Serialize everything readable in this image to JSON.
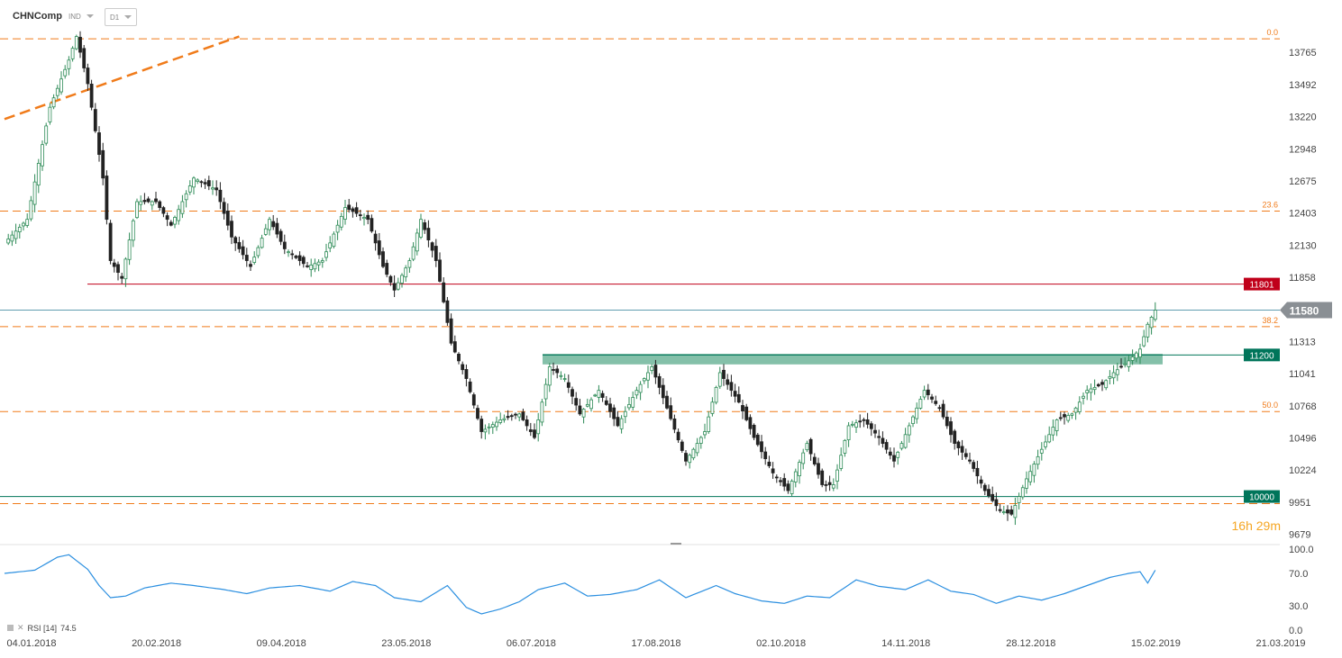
{
  "toolbar": {
    "symbol": "CHNComp",
    "instrument_type": "IND",
    "timeframe": "D1"
  },
  "timer": {
    "hours": "16",
    "h_unit": "h",
    "minutes": "29",
    "m_unit": "m"
  },
  "rsi": {
    "label": "RSI [14]",
    "value": "74.5"
  },
  "colors": {
    "bull": "#2e8b57",
    "bear": "#222222",
    "fib": "#f07b1a",
    "resistance_red": "#c0001a",
    "support_teal": "#00755a",
    "zone": "#6fb59a",
    "rsi_line": "#2b8fe0",
    "price_badge": "#8a8f94"
  },
  "chart_data": {
    "type": "candlestick",
    "ylim": [
      9600,
      13950
    ],
    "price_ticks": [
      "13765",
      "13492",
      "13220",
      "12948",
      "12675",
      "12403",
      "12130",
      "11858",
      "11313",
      "11041",
      "10768",
      "10496",
      "10224",
      "9951",
      "9679"
    ],
    "date_ticks": [
      "04.01.2018",
      "20.02.2018",
      "09.04.2018",
      "23.05.2018",
      "06.07.2018",
      "17.08.2018",
      "02.10.2018",
      "14.11.2018",
      "28.12.2018",
      "15.02.2019",
      "21.03.2019"
    ],
    "fib_levels": [
      {
        "label": "0.0",
        "value": 13880
      },
      {
        "label": "23.6",
        "value": 12420
      },
      {
        "label": "38.2",
        "value": 11440
      },
      {
        "label": "50.0",
        "value": 10720
      },
      {
        "label": "",
        "value": 9940
      }
    ],
    "horizontal_levels": [
      {
        "label": "11801",
        "value": 11801,
        "kind": "resistance"
      },
      {
        "label": "11200",
        "value": 11200,
        "kind": "support"
      },
      {
        "label": "10000",
        "value": 10000,
        "kind": "support"
      }
    ],
    "current_price": {
      "label": "11580",
      "value": 11580
    },
    "zone": {
      "from": 11120,
      "to": 11210
    },
    "trendline": {
      "from": [
        0,
        13200
      ],
      "to": [
        62,
        13900
      ]
    },
    "anchors": [
      [
        0,
        12150
      ],
      [
        6,
        12350
      ],
      [
        12,
        13300
      ],
      [
        17,
        13700
      ],
      [
        19,
        13900
      ],
      [
        22,
        13500
      ],
      [
        26,
        12700
      ],
      [
        28,
        12000
      ],
      [
        31,
        11850
      ],
      [
        35,
        12500
      ],
      [
        40,
        12500
      ],
      [
        44,
        12300
      ],
      [
        50,
        12700
      ],
      [
        56,
        12600
      ],
      [
        60,
        12200
      ],
      [
        65,
        11950
      ],
      [
        70,
        12350
      ],
      [
        74,
        12100
      ],
      [
        80,
        11950
      ],
      [
        84,
        12000
      ],
      [
        90,
        12450
      ],
      [
        96,
        12350
      ],
      [
        100,
        11950
      ],
      [
        103,
        11750
      ],
      [
        107,
        12000
      ],
      [
        110,
        12350
      ],
      [
        114,
        12000
      ],
      [
        118,
        11300
      ],
      [
        122,
        11000
      ],
      [
        126,
        10550
      ],
      [
        131,
        10650
      ],
      [
        136,
        10700
      ],
      [
        140,
        10500
      ],
      [
        144,
        11100
      ],
      [
        148,
        11000
      ],
      [
        152,
        10700
      ],
      [
        157,
        10900
      ],
      [
        162,
        10600
      ],
      [
        167,
        10900
      ],
      [
        171,
        11100
      ],
      [
        175,
        10750
      ],
      [
        180,
        10300
      ],
      [
        185,
        10550
      ],
      [
        189,
        11050
      ],
      [
        194,
        10800
      ],
      [
        198,
        10500
      ],
      [
        203,
        10200
      ],
      [
        207,
        10050
      ],
      [
        212,
        10450
      ],
      [
        216,
        10100
      ],
      [
        219,
        10100
      ],
      [
        223,
        10600
      ],
      [
        227,
        10650
      ],
      [
        231,
        10500
      ],
      [
        235,
        10300
      ],
      [
        239,
        10600
      ],
      [
        243,
        10900
      ],
      [
        247,
        10750
      ],
      [
        251,
        10450
      ],
      [
        255,
        10300
      ],
      [
        259,
        10050
      ],
      [
        263,
        9880
      ],
      [
        266,
        9850
      ],
      [
        270,
        10150
      ],
      [
        274,
        10400
      ],
      [
        278,
        10650
      ],
      [
        282,
        10700
      ],
      [
        286,
        10900
      ],
      [
        290,
        10950
      ],
      [
        293,
        11050
      ],
      [
        297,
        11150
      ],
      [
        300,
        11250
      ],
      [
        302,
        11460
      ],
      [
        304,
        11580
      ]
    ],
    "rsi_ylim": [
      0,
      100
    ],
    "rsi_ticks": [
      "100.0",
      "70.0",
      "30.0",
      "0.0"
    ],
    "rsi_anchors": [
      [
        0,
        70
      ],
      [
        8,
        74
      ],
      [
        14,
        90
      ],
      [
        17,
        93
      ],
      [
        22,
        75
      ],
      [
        25,
        55
      ],
      [
        28,
        40
      ],
      [
        32,
        42
      ],
      [
        37,
        52
      ],
      [
        44,
        58
      ],
      [
        50,
        55
      ],
      [
        58,
        50
      ],
      [
        64,
        45
      ],
      [
        70,
        52
      ],
      [
        78,
        55
      ],
      [
        86,
        48
      ],
      [
        92,
        60
      ],
      [
        98,
        55
      ],
      [
        103,
        40
      ],
      [
        110,
        35
      ],
      [
        117,
        55
      ],
      [
        122,
        28
      ],
      [
        126,
        20
      ],
      [
        131,
        26
      ],
      [
        136,
        35
      ],
      [
        141,
        50
      ],
      [
        148,
        58
      ],
      [
        154,
        42
      ],
      [
        160,
        44
      ],
      [
        167,
        50
      ],
      [
        173,
        62
      ],
      [
        180,
        40
      ],
      [
        188,
        55
      ],
      [
        193,
        45
      ],
      [
        200,
        36
      ],
      [
        206,
        33
      ],
      [
        212,
        42
      ],
      [
        218,
        40
      ],
      [
        225,
        62
      ],
      [
        231,
        54
      ],
      [
        238,
        50
      ],
      [
        244,
        62
      ],
      [
        250,
        48
      ],
      [
        256,
        44
      ],
      [
        262,
        33
      ],
      [
        268,
        42
      ],
      [
        274,
        37
      ],
      [
        280,
        45
      ],
      [
        286,
        55
      ],
      [
        292,
        65
      ],
      [
        297,
        70
      ],
      [
        300,
        72
      ],
      [
        302,
        58
      ],
      [
        304,
        74
      ]
    ]
  }
}
